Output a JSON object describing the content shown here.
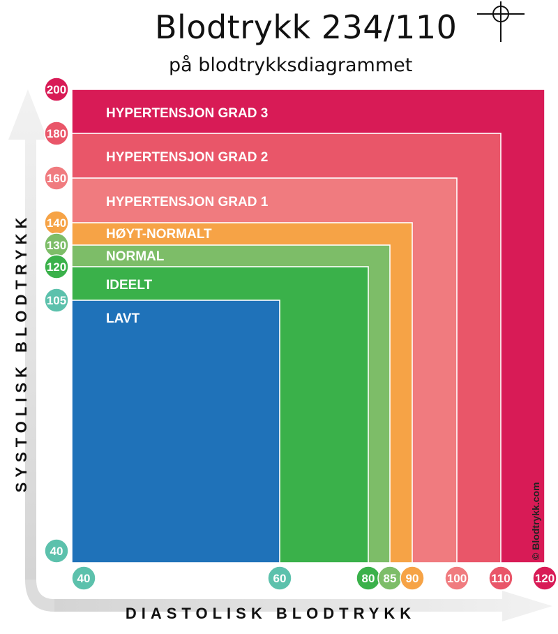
{
  "header": {
    "title": "Blodtrykk 234/110",
    "subtitle": "på blodtrykksdiagrammet"
  },
  "credit": "© Blodtrykk.com",
  "chart_data": {
    "type": "area",
    "title": "Blodtrykk 234/110",
    "subtitle": "på blodtrykksdiagrammet",
    "xlabel": "DIASTOLISK BLODTRYKK",
    "ylabel": "SYSTOLISK BLODTRYKK",
    "x_ticks": [
      {
        "label": "40",
        "value": 40,
        "color": "#5cc1ac"
      },
      {
        "label": "60",
        "value": 60,
        "color": "#5cc1ac"
      },
      {
        "label": "80",
        "value": 80,
        "color": "#3ab14a"
      },
      {
        "label": "85",
        "value": 85,
        "color": "#7dbd68"
      },
      {
        "label": "90",
        "value": 90,
        "color": "#f6a346"
      },
      {
        "label": "100",
        "value": 100,
        "color": "#f07b7f"
      },
      {
        "label": "110",
        "value": 110,
        "color": "#e95669"
      },
      {
        "label": "120",
        "value": 120,
        "color": "#d81b56"
      }
    ],
    "y_ticks": [
      {
        "label": "200",
        "value": 200,
        "color": "#d81b56"
      },
      {
        "label": "180",
        "value": 180,
        "color": "#e95669"
      },
      {
        "label": "160",
        "value": 160,
        "color": "#f07b7f"
      },
      {
        "label": "140",
        "value": 140,
        "color": "#f6a346"
      },
      {
        "label": "130",
        "value": 130,
        "color": "#7dbd68"
      },
      {
        "label": "120",
        "value": 120,
        "color": "#3ab14a"
      },
      {
        "label": "105",
        "value": 105,
        "color": "#5cc1ac"
      },
      {
        "label": "40",
        "value": 40,
        "color": "#5cc1ac"
      }
    ],
    "zones": [
      {
        "label": "HYPERTENSJON GRAD 3",
        "diastolic_max": 120,
        "systolic_max": 200,
        "color": "#d81b56"
      },
      {
        "label": "HYPERTENSJON GRAD 2",
        "diastolic_max": 110,
        "systolic_max": 180,
        "color": "#e95669"
      },
      {
        "label": "HYPERTENSJON GRAD 1",
        "diastolic_max": 100,
        "systolic_max": 160,
        "color": "#f07b7f"
      },
      {
        "label": "HØYT-NORMALT",
        "diastolic_max": 90,
        "systolic_max": 140,
        "color": "#f6a346"
      },
      {
        "label": "NORMAL",
        "diastolic_max": 85,
        "systolic_max": 130,
        "color": "#7dbd68"
      },
      {
        "label": "IDEELT",
        "diastolic_max": 80,
        "systolic_max": 120,
        "color": "#3ab14a"
      },
      {
        "label": "LAVT",
        "diastolic_max": 60,
        "systolic_max": 105,
        "color": "#1f72b9"
      }
    ],
    "reading": {
      "systolic": 234,
      "diastolic": 110
    }
  }
}
